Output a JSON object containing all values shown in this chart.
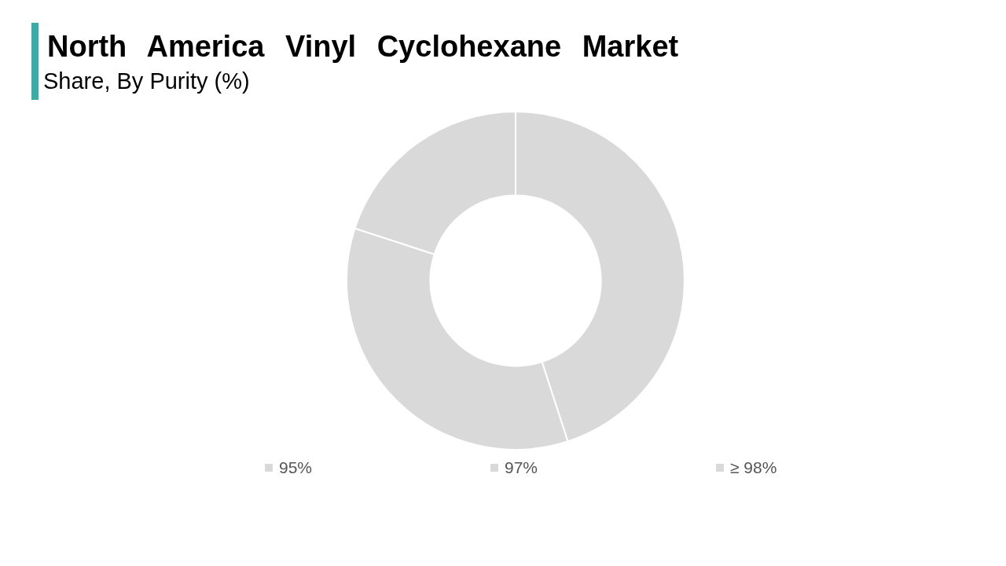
{
  "chart_data": {
    "type": "donut",
    "title": "North America Vinyl Cyclohexane Market",
    "subtitle": "Share, By Purity (%)",
    "categories": [
      "95%",
      "97%",
      "≥ 98%"
    ],
    "values": [
      45,
      35,
      20
    ],
    "colors": [
      "#d9d9d9",
      "#d9d9d9",
      "#d9d9d9"
    ],
    "legend": "bottom"
  }
}
